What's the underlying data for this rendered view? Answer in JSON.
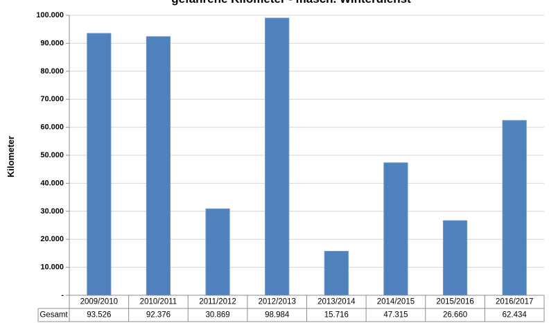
{
  "colors": {
    "bar": "#4f81bd",
    "bar_edge": "#6f97c9",
    "gridline": "#d4d4d4",
    "axis": "#8c8c8c",
    "table_border": "#8c8c8c"
  },
  "chart_data": {
    "type": "bar",
    "title": "gefahrene Kilometer - masch. Winterdienst",
    "xlabel": "",
    "ylabel": "Kilometer",
    "ylim": [
      0,
      100000
    ],
    "yticks": [
      0,
      10000,
      20000,
      30000,
      40000,
      50000,
      60000,
      70000,
      80000,
      90000,
      100000
    ],
    "ytick_labels": [
      "-",
      "10.000",
      "20.000",
      "30.000",
      "40.000",
      "50.000",
      "60.000",
      "70.000",
      "80.000",
      "90.000",
      "100.000"
    ],
    "grid": true,
    "legend": "none",
    "categories": [
      "2009/2010",
      "2010/2011",
      "2011/2012",
      "2012/2013",
      "2013/2014",
      "2014/2015",
      "2015/2016",
      "2016/2017"
    ],
    "series": [
      {
        "name": "Gesamt",
        "values": [
          93526,
          92376,
          30869,
          98984,
          15716,
          47315,
          26660,
          62434
        ],
        "value_labels": [
          "93.526",
          "92.376",
          "30.869",
          "98.984",
          "15.716",
          "47.315",
          "26.660",
          "62.434"
        ]
      }
    ]
  }
}
